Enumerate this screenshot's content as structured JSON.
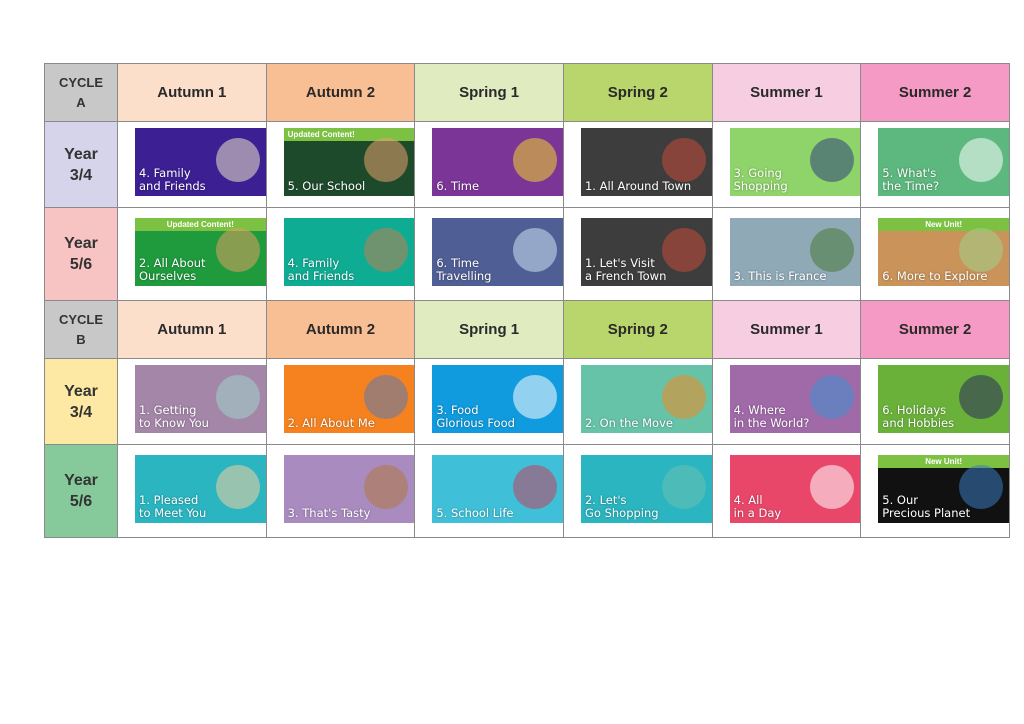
{
  "terms": [
    "Autumn 1",
    "Autumn 2",
    "Spring 1",
    "Spring 2",
    "Summer 1",
    "Summer 2"
  ],
  "term_colors": [
    "#fbdfcb",
    "#f9bf94",
    "#e1ebc0",
    "#b9d66c",
    "#f7cde2",
    "#f59ac4"
  ],
  "cycles": [
    {
      "label": "CYCLE\nA",
      "rows": [
        {
          "label": "Year\n3/4",
          "color": "#d6d4ea",
          "units": [
            {
              "title": "4. Family\nand Friends",
              "color": "#3b1f93",
              "art": "#f0e6c8"
            },
            {
              "title": "5. Our School",
              "color": "#1e4a2c",
              "badge": "Updated Content!",
              "art": "#e8a070"
            },
            {
              "title": "6. Time",
              "color": "#7b3597",
              "art": "#f3d22a"
            },
            {
              "title": "1. All Around Town",
              "color": "#3d3d3d",
              "art": "#c44a3a"
            },
            {
              "title": "3. Going\nShopping",
              "color": "#8fd46a",
              "art": "#2e3f7a"
            },
            {
              "title": "5. What's\nthe Time?",
              "color": "#5cb87e",
              "art": "#ffffff"
            }
          ]
        },
        {
          "label": "Year\n5/6",
          "color": "#f7c3c3",
          "units": [
            {
              "title": "2. All About\nOurselves",
              "color": "#1f9a3d",
              "badge": "Updated Content!",
              "art": "#e0a060"
            },
            {
              "title": "4. Family\nand Friends",
              "color": "#0fac94",
              "art": "#c08050"
            },
            {
              "title": "6. Time\nTravelling",
              "color": "#4f5e94",
              "art": "#cfe3f3"
            },
            {
              "title": "1. Let's Visit\na French Town",
              "color": "#3d3d3d",
              "art": "#c44a3a"
            },
            {
              "title": "3. This is France",
              "color": "#8fa9b6",
              "art": "#4b7a3a"
            },
            {
              "title": "6. More to Explore",
              "color": "#c9935a",
              "badge": "New Unit!",
              "art": "#9fd28a"
            }
          ]
        }
      ]
    },
    {
      "label": "CYCLE\nB",
      "rows": [
        {
          "label": "Year\n3/4",
          "color": "#fde9a4",
          "units": [
            {
              "title": "1. Getting\nto Know You",
              "color": "#a486a8",
              "art": "#9ed4c8"
            },
            {
              "title": "2. All About Me",
              "color": "#f5821f",
              "art": "#5a7ab0"
            },
            {
              "title": "3. Food\nGlorious Food",
              "color": "#0f9bde",
              "art": "#ffffff"
            },
            {
              "title": "2. On the Move",
              "color": "#66c3a8",
              "art": "#f08a20"
            },
            {
              "title": "4. Where\nin the World?",
              "color": "#a06aa8",
              "art": "#3f8fd0"
            },
            {
              "title": "6. Holidays\nand Hobbies",
              "color": "#6ab13a",
              "art": "#2c2c5a"
            }
          ]
        },
        {
          "label": "Year\n5/6",
          "color": "#86c99a",
          "units": [
            {
              "title": "1. Pleased\nto Meet You",
              "color": "#2ab5c0",
              "art": "#f2d0a0"
            },
            {
              "title": "3. That's Tasty",
              "color": "#a98bbf",
              "art": "#b07a40"
            },
            {
              "title": "5. School Life",
              "color": "#40c0d8",
              "art": "#c04060"
            },
            {
              "title": "2. Let's\nGo Shopping",
              "color": "#2ab5c0",
              "art": "#6ac0b0"
            },
            {
              "title": "4. All\nin a Day",
              "color": "#e9476a",
              "art": "#ffffff"
            },
            {
              "title": "5. Our\nPrecious Planet",
              "color": "#111111",
              "badge": "New Unit!",
              "art": "#3a7ac0"
            }
          ]
        }
      ]
    }
  ]
}
